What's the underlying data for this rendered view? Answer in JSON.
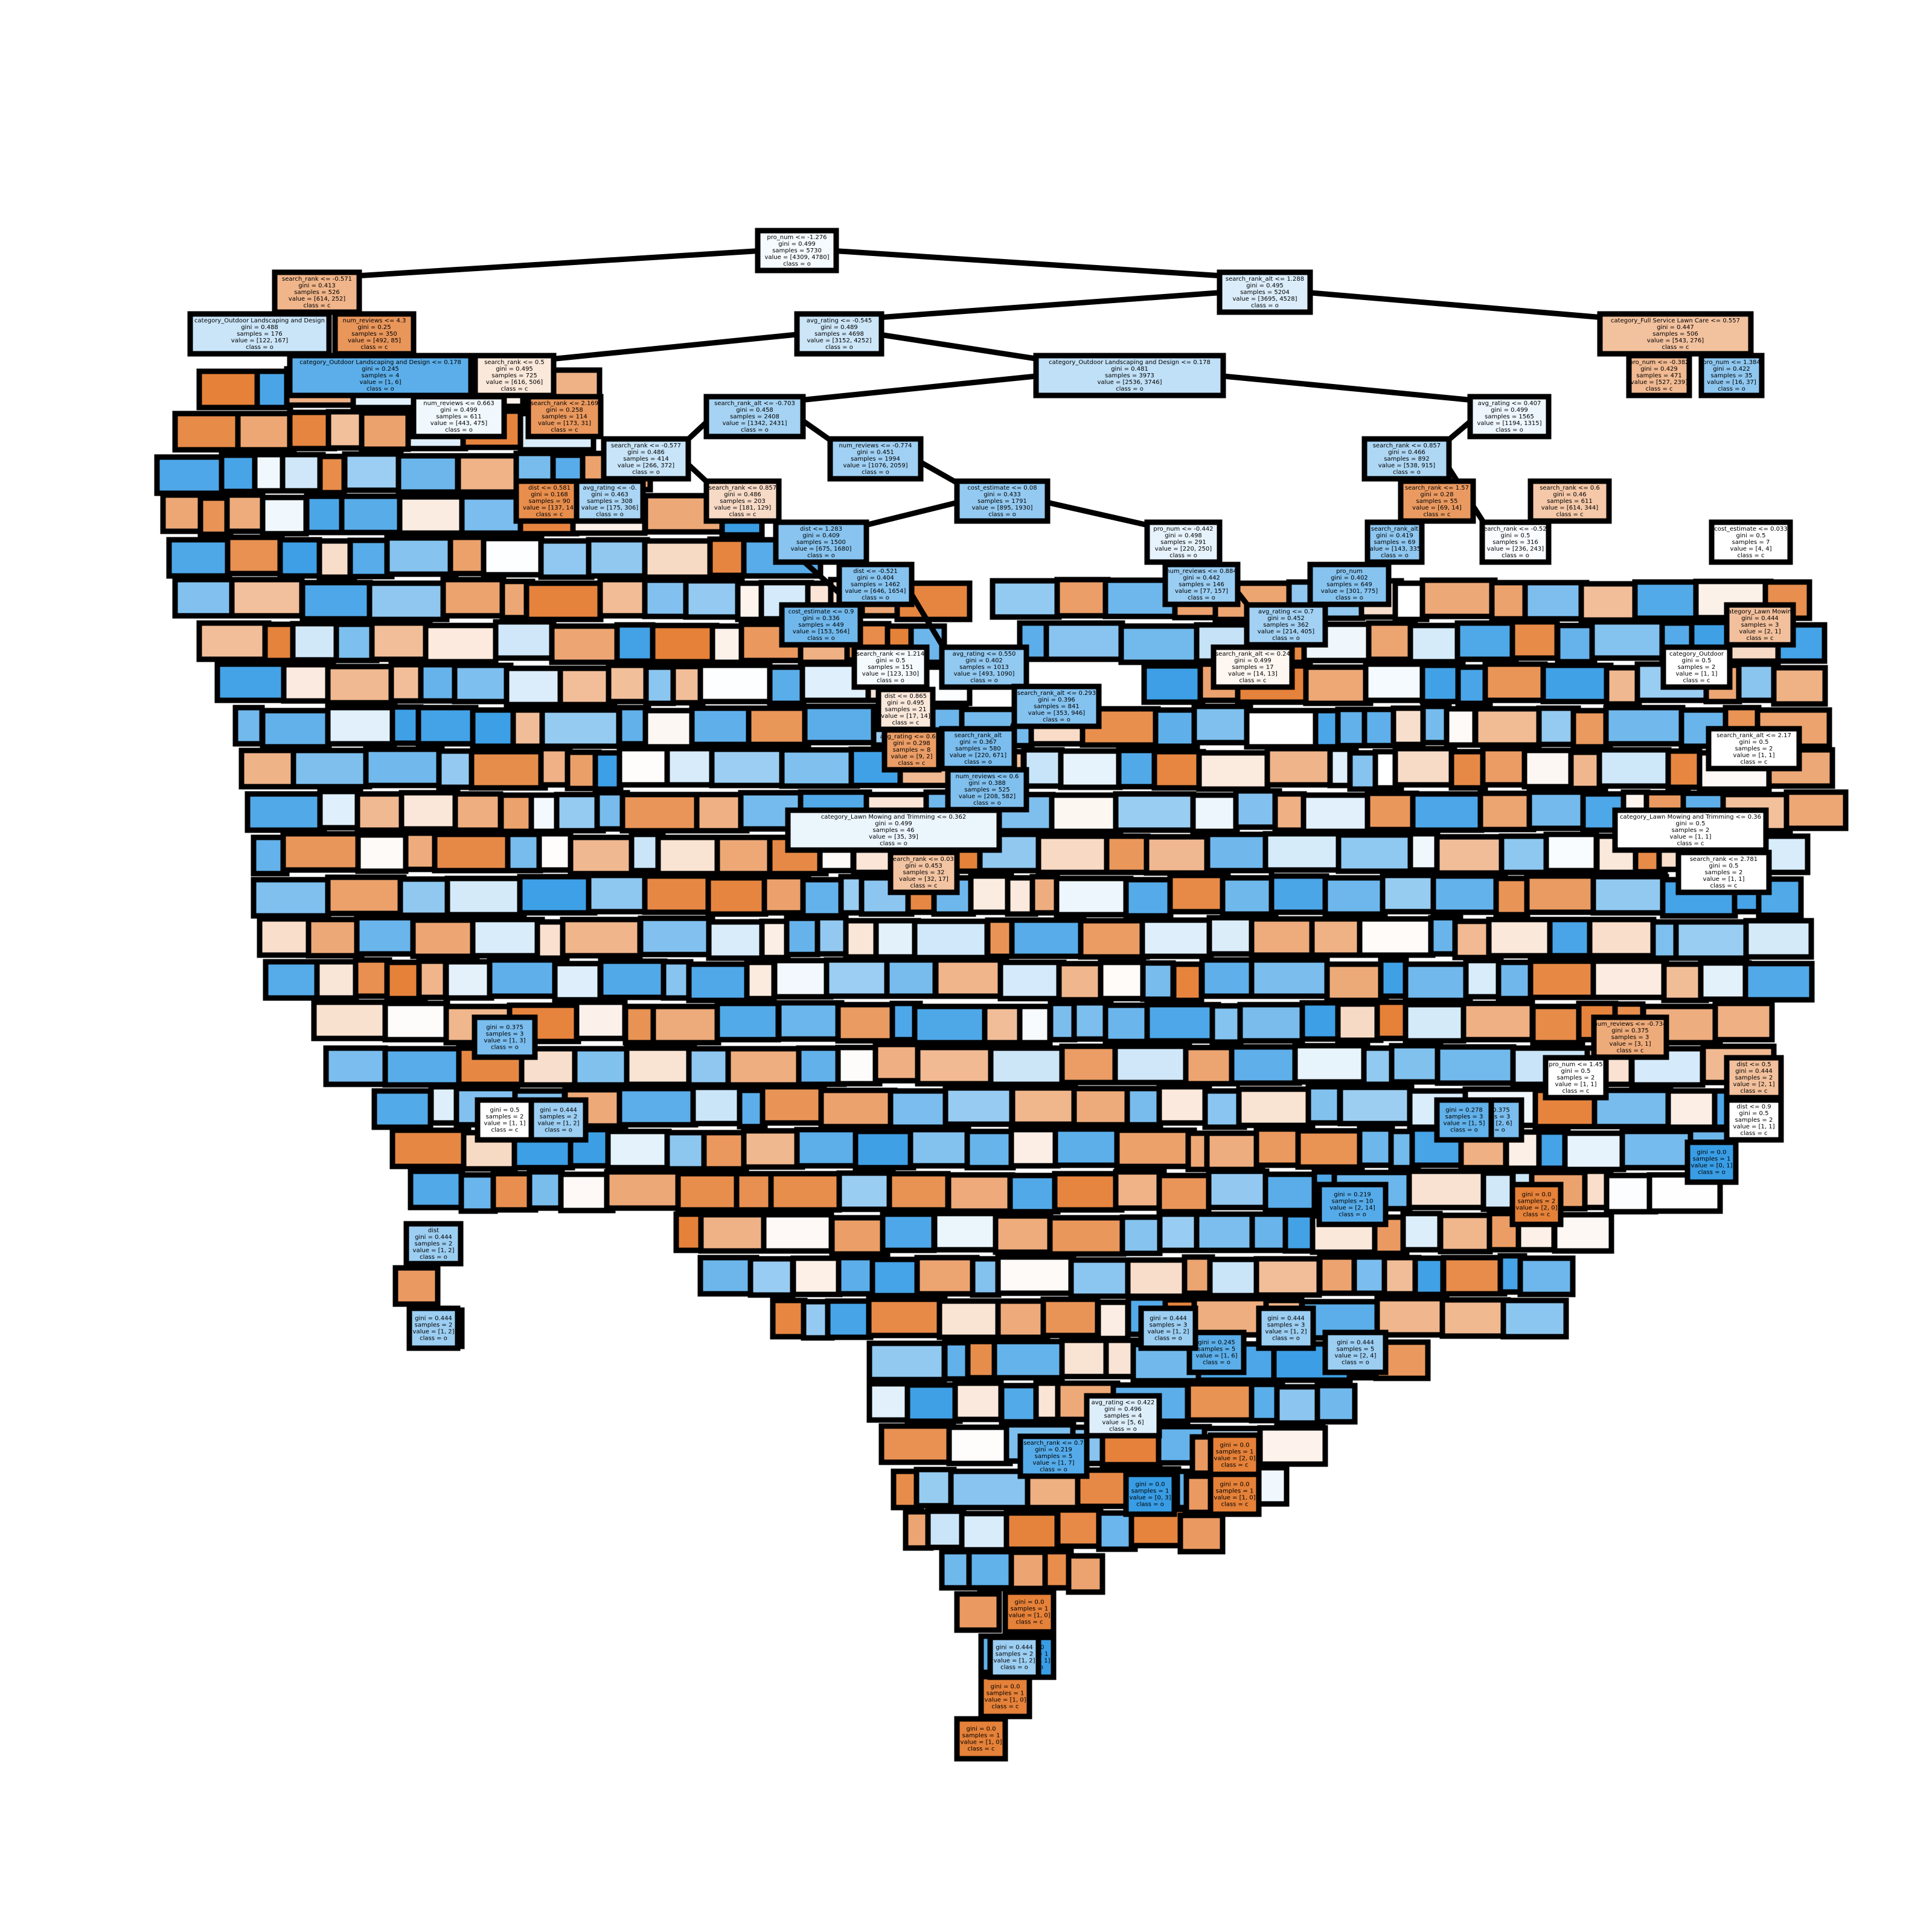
{
  "diagram": {
    "type": "decision-tree",
    "class_colors": {
      "c": "#e58139",
      "o": "#399de5"
    },
    "nodes": [
      {
        "id": "root",
        "lines": [
          "pro_num <= -1.276",
          "gini = 0.499",
          "samples = 5730",
          "value = [4309, 4780]",
          "class = o"
        ],
        "class": "o",
        "purity": 0.05
      },
      {
        "id": "n_l1",
        "lines": [
          "search_rank <= -0.571",
          "gini = 0.413",
          "samples = 526",
          "value = [614, 252]",
          "class = c"
        ],
        "class": "c",
        "purity": 0.59
      },
      {
        "id": "n_r1",
        "lines": [
          "search_rank_alt <= 1.288",
          "gini = 0.495",
          "samples = 5204",
          "value = [3695, 4528]",
          "class = o"
        ],
        "class": "o",
        "purity": 0.18
      },
      {
        "id": "n_l2a",
        "lines": [
          "category_Outdoor Landscaping and Design",
          "gini = 0.488",
          "samples = 176",
          "value = [122, 167]",
          "class = o"
        ],
        "class": "o",
        "purity": 0.27
      },
      {
        "id": "n_l2b",
        "lines": [
          "num_reviews <= 4.3",
          "gini = 0.25",
          "samples = 350",
          "value = [492, 85]",
          "class = c"
        ],
        "class": "c",
        "purity": 0.83
      },
      {
        "id": "n_r2a",
        "lines": [
          "avg_rating <= -0.545",
          "gini = 0.489",
          "samples = 4698",
          "value = [3152, 4252]",
          "class = o"
        ],
        "class": "o",
        "purity": 0.26
      },
      {
        "id": "n_r2b",
        "lines": [
          "category_Full Service Lawn Care <= 0.557",
          "gini = 0.447",
          "samples = 506",
          "value = [543, 276]",
          "class = c"
        ],
        "class": "c",
        "purity": 0.49
      },
      {
        "id": "n_l3a",
        "lines": [
          "category_Outdoor Landscaping and Design <= 0.178",
          "gini = 0.245",
          "samples = 4",
          "value = [1, 6]",
          "class = o"
        ],
        "class": "o",
        "purity": 0.83
      },
      {
        "id": "n_l3b",
        "lines": [
          "search_rank <= 0.5",
          "gini = 0.495",
          "samples = 725",
          "value = [616, 506]",
          "class = c"
        ],
        "class": "c",
        "purity": 0.18
      },
      {
        "id": "n_r3a",
        "lines": [
          "category_Outdoor Landscaping and Design <= 0.178",
          "gini = 0.481",
          "samples = 3973",
          "value = [2536, 3746]",
          "class = o"
        ],
        "class": "o",
        "purity": 0.32
      },
      {
        "id": "n_r3b",
        "lines": [
          "pro_num <= -0.382",
          "gini = 0.429",
          "samples = 471",
          "value = [527, 239]",
          "class = c"
        ],
        "class": "c",
        "purity": 0.55
      },
      {
        "id": "n_r3c",
        "lines": [
          "pro_num <= 1.384",
          "gini = 0.422",
          "samples = 35",
          "value = [16, 37]",
          "class = o"
        ],
        "class": "o",
        "purity": 0.57
      },
      {
        "id": "n_l4a",
        "lines": [
          "num_reviews <= 0.663",
          "gini = 0.499",
          "samples = 611",
          "value = [443, 475]",
          "class = o"
        ],
        "class": "o",
        "purity": 0.07
      },
      {
        "id": "n_l4b",
        "lines": [
          "search_rank <= 2.169",
          "gini = 0.258",
          "samples = 114",
          "value = [173, 31]",
          "class = c"
        ],
        "class": "c",
        "purity": 0.82
      },
      {
        "id": "n_r4a",
        "lines": [
          "search_rank_alt <= -0.703",
          "gini = 0.458",
          "samples = 2408",
          "value = [1342, 2431]",
          "class = o"
        ],
        "class": "o",
        "purity": 0.45
      },
      {
        "id": "n_r4b",
        "lines": [
          "avg_rating <= 0.407",
          "gini = 0.499",
          "samples = 1565",
          "value = [1194, 1315]",
          "class = o"
        ],
        "class": "o",
        "purity": 0.09
      },
      {
        "id": "n_r5a",
        "lines": [
          "num_reviews <= -0.774",
          "gini = 0.451",
          "samples = 1994",
          "value = [1076, 2059]",
          "class = o"
        ],
        "class": "o",
        "purity": 0.48
      },
      {
        "id": "n_r5b",
        "lines": [
          "search_rank <= 0.857",
          "gini = 0.466",
          "samples = 892",
          "value = [538, 915]",
          "class = o"
        ],
        "class": "o",
        "purity": 0.41
      },
      {
        "id": "n_l5a",
        "lines": [
          "search_rank <= -0.577",
          "gini = 0.486",
          "samples = 414",
          "value = [266, 372]",
          "class = o"
        ],
        "class": "o",
        "purity": 0.28
      },
      {
        "id": "n_l5b",
        "lines": [
          "dist <= 0.581",
          "gini = 0.168",
          "samples = 90",
          "value = [137, 14]",
          "class = c"
        ],
        "class": "c",
        "purity": 0.9
      },
      {
        "id": "n_r6a",
        "lines": [
          "cost_estimate <= 0.08",
          "gini = 0.433",
          "samples = 1791",
          "value = [895, 1930]",
          "class = o"
        ],
        "class": "o",
        "purity": 0.54
      },
      {
        "id": "n_r6b",
        "lines": [
          "pro_num <= -0.442",
          "gini = 0.498",
          "samples = 291",
          "value = [220, 250]",
          "class = o"
        ],
        "class": "o",
        "purity": 0.12
      },
      {
        "id": "n_l6a",
        "lines": [
          "avg_rating <= -0.",
          "gini = 0.463",
          "samples = 308",
          "value = [175, 306]",
          "class = o"
        ],
        "class": "o",
        "purity": 0.43
      },
      {
        "id": "n_l6b",
        "lines": [
          "search_rank <= 0.857",
          "gini = 0.486",
          "samples = 203",
          "value = [181, 129]",
          "class = c"
        ],
        "class": "c",
        "purity": 0.29
      },
      {
        "id": "n_r7a",
        "lines": [
          "dist <= 1.283",
          "gini = 0.409",
          "samples = 1500",
          "value = [675, 1680]",
          "class = o"
        ],
        "class": "o",
        "purity": 0.6
      },
      {
        "id": "n_r7b",
        "lines": [
          "num_reviews <= 0.884",
          "gini = 0.442",
          "samples = 146",
          "value = [77, 157]",
          "class = o"
        ],
        "class": "o",
        "purity": 0.51
      },
      {
        "id": "n_r7c",
        "lines": [
          "search_rank <= -0.521",
          "gini = 0.5",
          "samples = 316",
          "value = [236, 243]",
          "class = o"
        ],
        "class": "o",
        "purity": 0.03
      },
      {
        "id": "n_r7d",
        "lines": [
          "search_rank <= 1.57",
          "gini = 0.28",
          "samples = 55",
          "value = [69, 14]",
          "class = c"
        ],
        "class": "c",
        "purity": 0.8
      },
      {
        "id": "n_r8a",
        "lines": [
          "dist <= -0.521",
          "gini = 0.404",
          "samples = 1462",
          "value = [646, 1654]",
          "class = o"
        ],
        "class": "o",
        "purity": 0.61
      },
      {
        "id": "n_r8b",
        "lines": [
          "category_Lawn Mowing and Trimming <= 0.362",
          "gini = 0.499",
          "samples = 46",
          "value = [35, 39]",
          "class = o"
        ],
        "class": "o",
        "purity": 0.1
      },
      {
        "id": "n_r8c",
        "lines": [
          "avg_rating <= 0.550",
          "gini = 0.402",
          "samples = 1013",
          "value = [493, 1090]",
          "class = o"
        ],
        "class": "o",
        "purity": 0.55
      },
      {
        "id": "n_r8d",
        "lines": [
          "search_rank_alt <= 0.293",
          "gini = 0.396",
          "samples = 841",
          "value = [353, 946]",
          "class = o"
        ],
        "class": "o",
        "purity": 0.62
      },
      {
        "id": "n_r8e",
        "lines": [
          "search_rank_alt",
          "gini = 0.367",
          "samples = 580",
          "value = [220, 671]",
          "class = o"
        ],
        "class": "o",
        "purity": 0.67
      },
      {
        "id": "n_r8f",
        "lines": [
          "num_reviews <= 0.6",
          "gini = 0.388",
          "samples = 525",
          "value = [208, 582]",
          "class = o"
        ],
        "class": "o",
        "purity": 0.64
      },
      {
        "id": "n_r8g",
        "lines": [
          "cost_estimate <= 0.9",
          "gini = 0.336",
          "samples = 449",
          "value = [153, 564]",
          "class = o"
        ],
        "class": "o",
        "purity": 0.72
      },
      {
        "id": "n_r8h",
        "lines": [
          "search_rank <= 1.214",
          "gini = 0.5",
          "samples = 151",
          "value = [123, 130]",
          "class = o"
        ],
        "class": "o",
        "purity": 0.05
      },
      {
        "id": "n_r8i",
        "lines": [
          "dist <= 0.865",
          "gini = 0.495",
          "samples = 21",
          "value = [17, 14]",
          "class = c"
        ],
        "class": "c",
        "purity": 0.18
      },
      {
        "id": "n_r8j",
        "lines": [
          "avg_rating <= 0.624",
          "gini = 0.298",
          "samples = 8",
          "value = [9, 2]",
          "class = c"
        ],
        "class": "c",
        "purity": 0.78
      },
      {
        "id": "n_r8k",
        "lines": [
          "search_rank <= 0.039",
          "gini = 0.453",
          "samples = 32",
          "value = [32, 17]",
          "class = c"
        ],
        "class": "c",
        "purity": 0.47
      },
      {
        "id": "n_r8l",
        "lines": [
          "avg_rating <= 0.422",
          "gini = 0.496",
          "samples = 4",
          "value = [5, 6]",
          "class = o"
        ],
        "class": "o",
        "purity": 0.17
      },
      {
        "id": "n_r8m",
        "lines": [
          "search_rank <= 0.7",
          "gini = 0.219",
          "samples = 5",
          "value = [1, 7]",
          "class = o"
        ],
        "class": "o",
        "purity": 0.86
      },
      {
        "id": "n_r8n",
        "lines": [
          "search_rank_alt <= 0.24",
          "gini = 0.499",
          "samples = 17",
          "value = [14, 13]",
          "class = c"
        ],
        "class": "c",
        "purity": 0.07
      },
      {
        "id": "n_r8o",
        "lines": [
          "avg_rating <= 0.7",
          "gini = 0.452",
          "samples = 362",
          "value = [214, 405]",
          "class = o"
        ],
        "class": "o",
        "purity": 0.47
      },
      {
        "id": "n_r8p",
        "lines": [
          "pro_num",
          "gini = 0.402",
          "samples = 649",
          "value = [301, 775]",
          "class = o"
        ],
        "class": "o",
        "purity": 0.61
      },
      {
        "id": "n_r8q",
        "lines": [
          "search_rank_alt",
          "gini = 0.419",
          "samples = 69",
          "value = [143, 335]",
          "class = o"
        ],
        "class": "o",
        "purity": 0.57
      },
      {
        "id": "n_r8r",
        "lines": [
          "search_rank <= 0.6",
          "gini = 0.46",
          "samples = 611",
          "value = [614, 344]",
          "class = c"
        ],
        "class": "c",
        "purity": 0.44
      },
      {
        "id": "n_r8s",
        "lines": [
          "cost_estimate <= 0.033",
          "gini = 0.5",
          "samples = 7",
          "value = [4, 4]",
          "class = c"
        ],
        "class": "c",
        "purity": 0.0
      },
      {
        "id": "n_r8t",
        "lines": [
          "category_Lawn Mowing",
          "gini = 0.444",
          "samples = 3",
          "value = [2, 1]",
          "class = c"
        ],
        "class": "c",
        "purity": 0.5
      },
      {
        "id": "n_r8u",
        "lines": [
          "category_Outdoor",
          "gini = 0.5",
          "samples = 2",
          "value = [1, 1]",
          "class = c"
        ],
        "class": "c",
        "purity": 0.0
      },
      {
        "id": "n_r8v",
        "lines": [
          "category_Lawn Mowing and Trimming <= 0.36",
          "gini = 0.5",
          "samples = 2",
          "value = [1, 1]",
          "class = c"
        ],
        "class": "c",
        "purity": 0.0
      },
      {
        "id": "n_r8w",
        "lines": [
          "search_rank <= 2.781",
          "gini = 0.5",
          "samples = 2",
          "value = [1, 1]",
          "class = c"
        ],
        "class": "c",
        "purity": 0.0
      },
      {
        "id": "n_r8x",
        "lines": [
          "search_rank_alt <= 2.17",
          "gini = 0.5",
          "samples = 2",
          "value = [1, 1]",
          "class = c"
        ],
        "class": "c",
        "purity": 0.0
      },
      {
        "id": "n_r8y",
        "lines": [
          "num_reviews <= -0.734",
          "gini = 0.375",
          "samples = 3",
          "value = [3, 1]",
          "class = c"
        ],
        "class": "c",
        "purity": 0.67
      },
      {
        "id": "n_r8z",
        "lines": [
          "pro_num <= 1.45",
          "gini = 0.5",
          "samples = 2",
          "value = [1, 1]",
          "class = c"
        ],
        "class": "c",
        "purity": 0.0
      },
      {
        "id": "n_s1",
        "lines": [
          "dist <= 0.5",
          "gini = 0.444",
          "samples = 2",
          "value = [2, 1]",
          "class = c"
        ],
        "class": "c",
        "purity": 0.5
      },
      {
        "id": "n_s2",
        "lines": [
          "dist <= 0.9",
          "gini = 0.5",
          "samples = 2",
          "value = [1, 1]",
          "class = c"
        ],
        "class": "c",
        "purity": 0.0
      },
      {
        "id": "n_s3",
        "lines": [
          "dist",
          "gini = 0.444",
          "samples = 2",
          "value = [1, 2]",
          "class = o"
        ],
        "class": "o",
        "purity": 0.5
      },
      {
        "id": "n_s4",
        "lines": [
          "gini = 0.375",
          "samples = 3",
          "value = [1, 3]",
          "class = o"
        ],
        "class": "o",
        "purity": 0.67
      },
      {
        "id": "n_s5",
        "lines": [
          "gini = 0.5",
          "samples = 2",
          "value = [1, 1]",
          "class = c"
        ],
        "class": "c",
        "purity": 0.0
      },
      {
        "id": "n_s6",
        "lines": [
          "gini = 0.444",
          "samples = 2",
          "value = [1, 2]",
          "class = o"
        ],
        "class": "o",
        "purity": 0.5
      },
      {
        "id": "n_s7",
        "lines": [
          "gini = 0.0",
          "samples = 1",
          "value = [1, 0]",
          "class = c"
        ],
        "class": "c",
        "purity": 1.0
      },
      {
        "id": "n_s8",
        "lines": [
          "gini = 0.0",
          "samples = 1",
          "value = [0, 1]",
          "class = o"
        ],
        "class": "o",
        "purity": 1.0
      },
      {
        "id": "n_s9",
        "lines": [
          "gini = 0.245",
          "samples = 5",
          "value = [1, 6]",
          "class = o"
        ],
        "class": "o",
        "purity": 0.83
      },
      {
        "id": "n_s10",
        "lines": [
          "gini = 0.375",
          "samples = 3",
          "value = [2, 6]",
          "class = o"
        ],
        "class": "o",
        "purity": 0.67
      },
      {
        "id": "n_s11",
        "lines": [
          "gini = 0.444",
          "samples = 5",
          "value = [2, 4]",
          "class = o"
        ],
        "class": "o",
        "purity": 0.5
      },
      {
        "id": "n_s12",
        "lines": [
          "gini = 0.278",
          "samples = 3",
          "value = [1, 5]",
          "class = o"
        ],
        "class": "o",
        "purity": 0.8
      },
      {
        "id": "n_s13",
        "lines": [
          "gini = 0.444",
          "samples = 2",
          "value = [1, 2]",
          "class = o"
        ],
        "class": "o",
        "purity": 0.5
      },
      {
        "id": "n_s14",
        "lines": [
          "gini = 0.219",
          "samples = 10",
          "value = [2, 14]",
          "class = o"
        ],
        "class": "o",
        "purity": 0.86
      },
      {
        "id": "n_s15",
        "lines": [
          "gini = 0.0",
          "samples = 2",
          "value = [2, 0]",
          "class = c"
        ],
        "class": "c",
        "purity": 1.0
      },
      {
        "id": "n_s16",
        "lines": [
          "gini = 0.444",
          "samples = 3",
          "value = [1, 2]",
          "class = o"
        ],
        "class": "o",
        "purity": 0.5
      },
      {
        "id": "n_s17",
        "lines": [
          "gini = 0.0",
          "samples = 1",
          "value = [0, 3]",
          "class = o"
        ],
        "class": "o",
        "purity": 1.0
      },
      {
        "id": "n_s18",
        "lines": [
          "gini = 0.0",
          "samples = 1",
          "value = [2, 0]",
          "class = c"
        ],
        "class": "c",
        "purity": 1.0
      },
      {
        "id": "n_s19",
        "lines": [
          "gini = 0.444",
          "samples = 2",
          "value = [1, 2]",
          "class = o"
        ],
        "class": "o",
        "purity": 0.5
      },
      {
        "id": "n_s20",
        "lines": [
          "gini = 0.0",
          "samples = 1",
          "value = [0, 1]",
          "class = o"
        ],
        "class": "o",
        "purity": 1.0
      },
      {
        "id": "n_s21",
        "lines": [
          "gini = 0.444",
          "samples = 3",
          "value = [1, 2]",
          "class = o"
        ],
        "class": "o",
        "purity": 0.5
      },
      {
        "id": "n_s22",
        "lines": [
          "gini = 0.0",
          "samples = 1",
          "value = [1, 0]",
          "class = c"
        ],
        "class": "c",
        "purity": 1.0
      },
      {
        "id": "n_s23",
        "lines": [
          "gini = 0.0",
          "samples = 1",
          "value = [1, 0]",
          "class = c"
        ],
        "class": "c",
        "purity": 1.0
      },
      {
        "id": "n_s24",
        "lines": [
          "gini = 0.0",
          "samples = 1",
          "value = [1, 0]",
          "class = c"
        ],
        "class": "c",
        "purity": 1.0
      }
    ]
  }
}
